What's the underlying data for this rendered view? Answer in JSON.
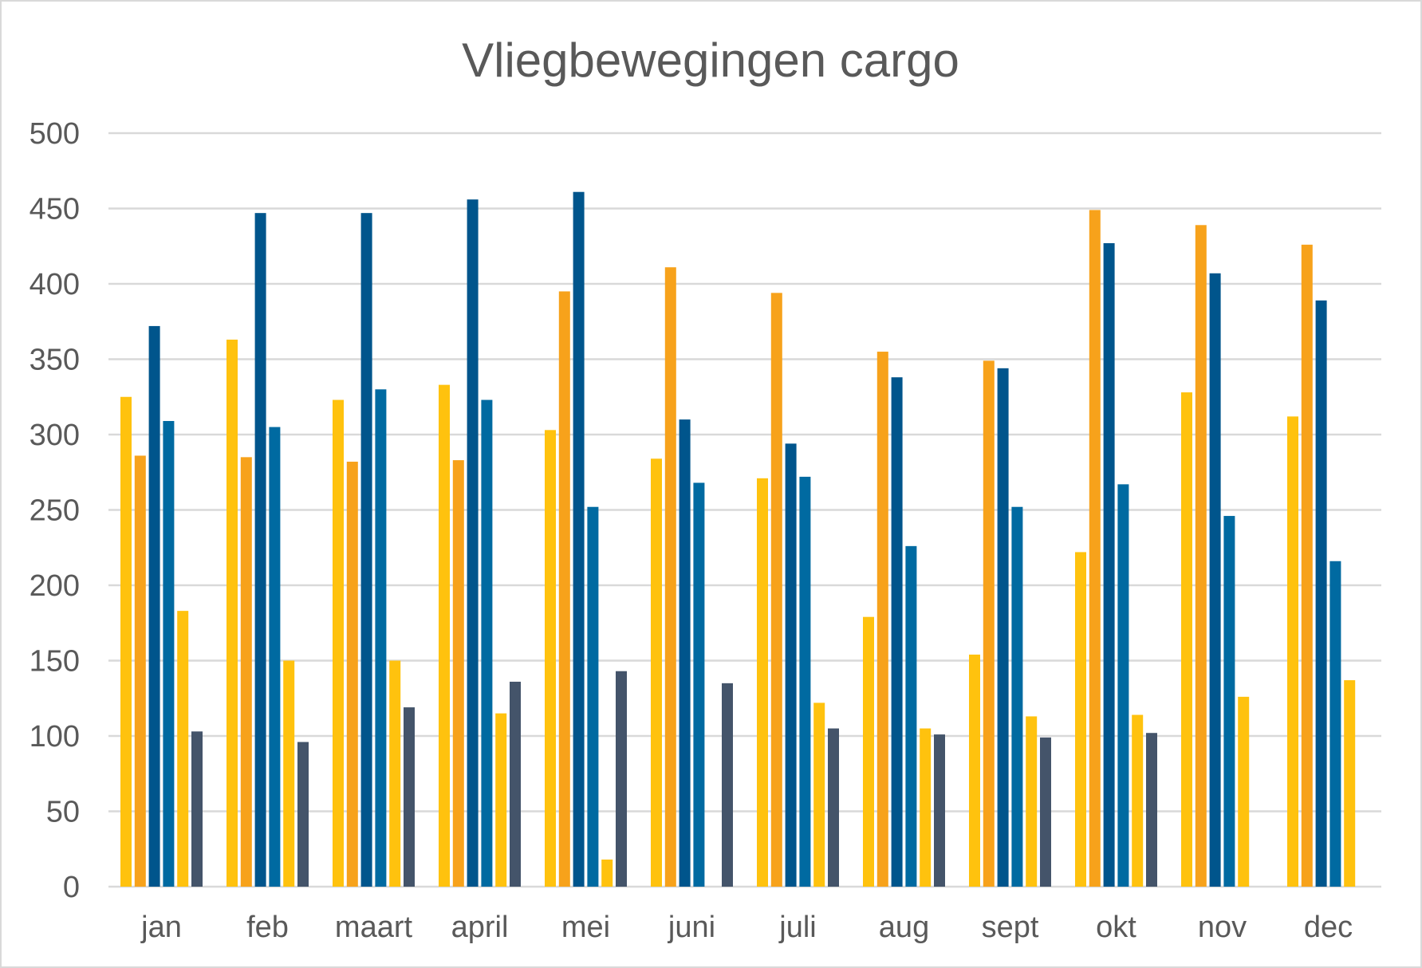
{
  "chart_data": {
    "type": "bar",
    "title": "Vliegbewegingen cargo",
    "xlabel": "",
    "ylabel": "",
    "ylim": [
      0,
      500
    ],
    "yticks": [
      0,
      50,
      100,
      150,
      200,
      250,
      300,
      350,
      400,
      450,
      500
    ],
    "grid": true,
    "legend": "none",
    "categories": [
      "jan",
      "feb",
      "maart",
      "april",
      "mei",
      "juni",
      "juli",
      "aug",
      "sept",
      "okt",
      "nov",
      "dec"
    ],
    "series": [
      {
        "color": "#FFC20E",
        "values": [
          325,
          363,
          323,
          333,
          303,
          284,
          271,
          179,
          154,
          222,
          328,
          312
        ]
      },
      {
        "color": "#F7A21B",
        "values": [
          286,
          285,
          282,
          283,
          395,
          411,
          394,
          355,
          349,
          449,
          439,
          426
        ]
      },
      {
        "color": "#00558C",
        "values": [
          372,
          447,
          447,
          456,
          461,
          310,
          294,
          338,
          344,
          427,
          407,
          389
        ]
      },
      {
        "color": "#006AA1",
        "values": [
          309,
          305,
          330,
          323,
          252,
          268,
          272,
          226,
          252,
          267,
          246,
          216
        ]
      },
      {
        "color": "#FFC20E",
        "values": [
          183,
          150,
          150,
          115,
          18,
          null,
          122,
          105,
          113,
          114,
          126,
          137
        ]
      },
      {
        "color": "#44546A",
        "values": [
          103,
          96,
          119,
          136,
          143,
          135,
          105,
          101,
          99,
          102,
          null,
          null
        ]
      }
    ]
  }
}
